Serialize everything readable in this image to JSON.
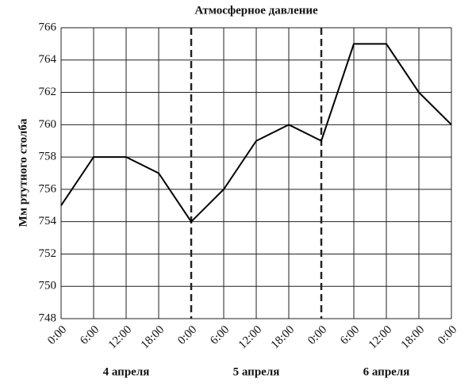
{
  "chart_data": {
    "type": "line",
    "title": "Атмосферное давление",
    "ylabel": "Мм ртутного столба",
    "categories": [
      "0:00",
      "6:00",
      "12:00",
      "18:00",
      "0:00",
      "6:00",
      "12:00",
      "18:00",
      "0:00",
      "6:00",
      "12:00",
      "18:00",
      "0:00"
    ],
    "day_labels": [
      "4 апреля",
      "5 апреля",
      "6 апреля"
    ],
    "series": [
      {
        "name": "Атмосферное давление",
        "color": "#000000",
        "values": [
          755,
          758,
          758,
          757,
          754,
          756,
          759,
          760,
          759,
          765,
          765,
          762,
          760
        ]
      }
    ],
    "ylim": [
      748,
      766
    ],
    "yticks": [
      748,
      750,
      752,
      754,
      756,
      758,
      760,
      762,
      764,
      766
    ],
    "grid": true
  }
}
